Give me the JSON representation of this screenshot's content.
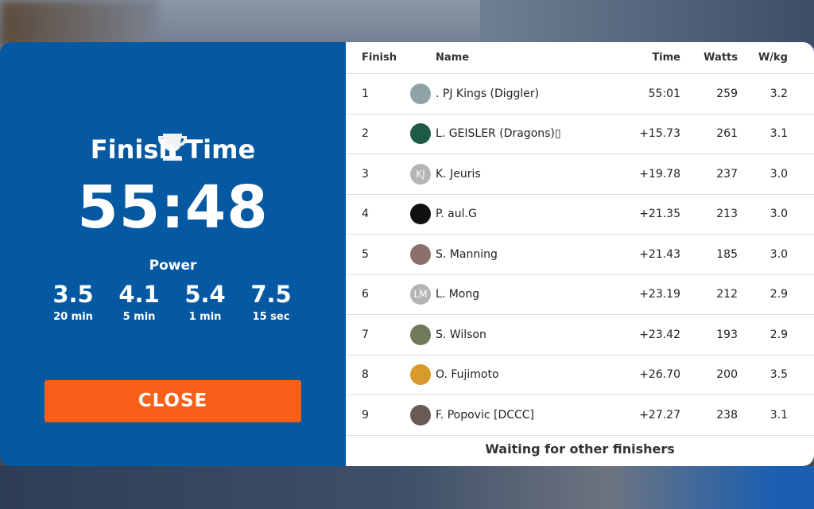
{
  "summary": {
    "title": "Finish Time",
    "finish_time": "55:48",
    "power_label": "Power",
    "power": [
      {
        "value": "3.5",
        "label": "20 min"
      },
      {
        "value": "4.1",
        "label": "5 min"
      },
      {
        "value": "5.4",
        "label": "1 min"
      },
      {
        "value": "7.5",
        "label": "15 sec"
      }
    ],
    "close_label": "CLOSE",
    "icon": "trophy-icon",
    "colors": {
      "panel": "#0459a2",
      "close": "#f85f19"
    }
  },
  "results": {
    "headers": {
      "finish": "Finish",
      "name": "Name",
      "time": "Time",
      "watts": "Watts",
      "wkg": "W/kg"
    },
    "rows": [
      {
        "finish": "1",
        "name": ". PJ Kings (Diggler)",
        "time": "55:01",
        "watts": "259",
        "wkg": "3.2",
        "avatar": "photo",
        "color": "#8ea3a8"
      },
      {
        "finish": "2",
        "name": "L. GEISLER (Dragons)▯",
        "time": "+15.73",
        "watts": "261",
        "wkg": "3.1",
        "avatar": "photo",
        "color": "#1d5a48"
      },
      {
        "finish": "3",
        "name": "K. Jeuris",
        "time": "+19.78",
        "watts": "237",
        "wkg": "3.0",
        "avatar": "KJ",
        "color": "#b5b5b5"
      },
      {
        "finish": "4",
        "name": "P. aul.G",
        "time": "+21.35",
        "watts": "213",
        "wkg": "3.0",
        "avatar": "photo",
        "color": "#111111"
      },
      {
        "finish": "5",
        "name": "S. Manning",
        "time": "+21.43",
        "watts": "185",
        "wkg": "3.0",
        "avatar": "photo",
        "color": "#8a6f6a"
      },
      {
        "finish": "6",
        "name": "L. Mong",
        "time": "+23.19",
        "watts": "212",
        "wkg": "2.9",
        "avatar": "LM",
        "color": "#b5b5b5"
      },
      {
        "finish": "7",
        "name": "S. Wilson",
        "time": "+23.42",
        "watts": "193",
        "wkg": "2.9",
        "avatar": "photo",
        "color": "#6f7a5a"
      },
      {
        "finish": "8",
        "name": "O. Fujimoto",
        "time": "+26.70",
        "watts": "200",
        "wkg": "3.5",
        "avatar": "photo",
        "color": "#d89a2a"
      },
      {
        "finish": "9",
        "name": "F. Popovic [DCCC]",
        "time": "+27.27",
        "watts": "238",
        "wkg": "3.1",
        "avatar": "photo",
        "color": "#6a5a55"
      }
    ],
    "footer": "Waiting for other finishers"
  }
}
